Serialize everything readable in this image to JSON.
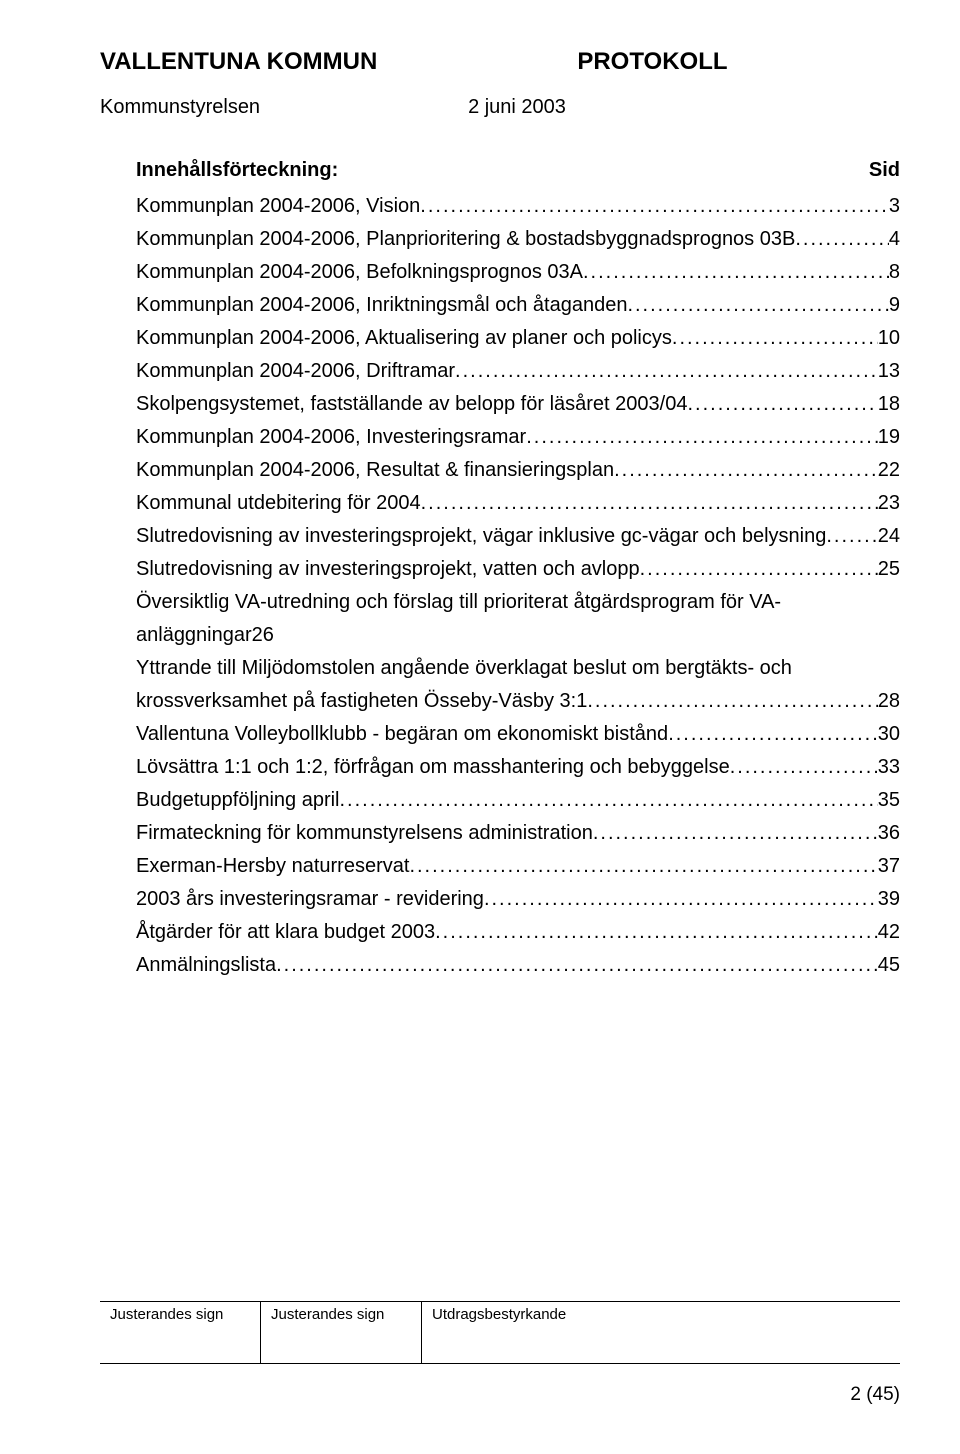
{
  "header": {
    "org": "VALLENTUNA KOMMUN",
    "doc_type": "PROTOKOLL",
    "committee": "Kommunstyrelsen",
    "date": "2 juni 2003"
  },
  "toc_header": {
    "title": "Innehållsförteckning:",
    "page_label": "Sid"
  },
  "toc": [
    {
      "text": "Kommunplan 2004-2006, Vision",
      "page": "3"
    },
    {
      "text": "Kommunplan 2004-2006, Planprioritering & bostadsbyggnadsprognos 03B",
      "page": "4"
    },
    {
      "text": "Kommunplan 2004-2006, Befolkningsprognos 03A",
      "page": "8"
    },
    {
      "text": "Kommunplan 2004-2006, Inriktningsmål och åtaganden",
      "page": "9"
    },
    {
      "text": "Kommunplan 2004-2006, Aktualisering av planer och policys",
      "page": "10"
    },
    {
      "text": "Kommunplan 2004-2006, Driftramar",
      "page": "13"
    },
    {
      "text": "Skolpengsystemet, fastställande av belopp för läsåret 2003/04",
      "page": "18"
    },
    {
      "text": "Kommunplan 2004-2006, Investeringsramar",
      "page": "19"
    },
    {
      "text": "Kommunplan 2004-2006, Resultat & finansieringsplan",
      "page": "22"
    },
    {
      "text": "Kommunal utdebitering för 2004",
      "page": "23"
    },
    {
      "text": "Slutredovisning av investeringsprojekt, vägar inklusive gc-vägar och belysning",
      "page": "24"
    },
    {
      "text": "Slutredovisning av investeringsprojekt, vatten och avlopp",
      "page": "25"
    },
    {
      "text": "Översiktlig VA-utredning och förslag till prioriterat åtgärdsprogram för VA-anläggningar26",
      "nodots": true
    },
    {
      "text_l1": "Yttrande till Miljödomstolen angående överklagat beslut om bergtäkts- och",
      "text_l2": "krossverksamhet på fastigheten Össeby-Väsby 3:1",
      "page": "28",
      "multiline": true
    },
    {
      "text": "Vallentuna Volleybollklubb - begäran om ekonomiskt bistånd",
      "page": "30"
    },
    {
      "text": "Lövsättra 1:1 och 1:2, förfrågan om masshantering och bebyggelse",
      "page": "33"
    },
    {
      "text": "Budgetuppföljning april",
      "page": "35"
    },
    {
      "text": "Firmateckning för kommunstyrelsens administration",
      "page": "36"
    },
    {
      "text": "Exerman-Hersby naturreservat",
      "page": "37"
    },
    {
      "text": "2003 års investeringsramar - revidering",
      "page": "39"
    },
    {
      "text": "Åtgärder för att klara budget 2003",
      "page": "42"
    },
    {
      "text": "Anmälningslista",
      "page": "45"
    }
  ],
  "footer": {
    "cells": [
      "Justerandes sign",
      "Justerandes sign",
      "Utdragsbestyrkande"
    ],
    "page_number": "2 (45)"
  }
}
